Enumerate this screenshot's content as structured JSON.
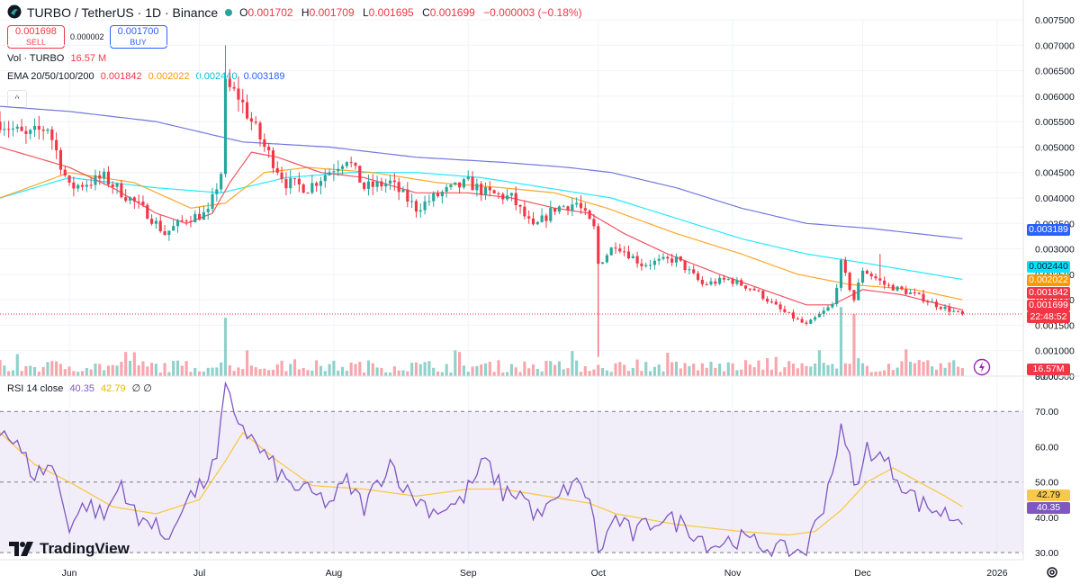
{
  "header": {
    "title": "TURBO / TetherUS · 1D · Binance",
    "ohlc": [
      {
        "k": "O",
        "v": "0.001702"
      },
      {
        "k": "H",
        "v": "0.001709"
      },
      {
        "k": "L",
        "v": "0.001695"
      },
      {
        "k": "C",
        "v": "0.001699"
      }
    ],
    "change": "−0.000003 (−0.18%)"
  },
  "trade": {
    "sell_price": "0.001698",
    "sell_label": "SELL",
    "spread": "0.000002",
    "buy_price": "0.001700",
    "buy_label": "BUY"
  },
  "legend": {
    "vol_label": "Vol · TURBO",
    "vol_value": "16.57 M",
    "ema_label": "EMA 20/50/100/200",
    "ema_values": [
      "0.001842",
      "0.002022",
      "0.002440",
      "0.003189"
    ],
    "collapse_glyph": "^"
  },
  "rsi_legend": {
    "label": "RSI 14 close",
    "rsi": "40.35",
    "ma": "42.79",
    "extra": "∅ ∅"
  },
  "price_labels": {
    "ema200": "0.003189",
    "ema100": "0.002440",
    "ema50": "0.002022",
    "ema20": "0.001842",
    "last": "0.001699",
    "countdown": "22:48:52",
    "vol": "16.57M",
    "rsi_ma": "42.79",
    "rsi": "40.35"
  },
  "brand": "TradingView",
  "colors": {
    "up": "#26a69a",
    "down": "#f23645",
    "ema20": "#f23645",
    "ema50": "#ff9800",
    "ema100": "#00e5ff",
    "ema200": "#5b5fd6",
    "rsi": "#7e57c2",
    "rsi_ma": "#f7c948"
  },
  "chart_data": [
    {
      "type": "candlestick",
      "title": "TURBO / TetherUS · 1D · Binance",
      "y_ticks": [
        "0.007500",
        "0.007000",
        "0.006500",
        "0.006000",
        "0.005500",
        "0.005000",
        "0.004500",
        "0.004000",
        "0.003500",
        "0.003000",
        "0.002500",
        "0.002000",
        "0.001500",
        "0.001000",
        "0.000500"
      ],
      "ylim": [
        0.0005,
        0.0075
      ],
      "x_ticks": [
        "Jun",
        "Jul",
        "Aug",
        "Sep",
        "Oct",
        "Nov",
        "Dec",
        "2026"
      ],
      "x_tick_days": [
        0,
        30,
        61,
        92,
        122,
        153,
        183,
        214
      ],
      "x_range_days": [
        -16,
        219
      ],
      "grid": true,
      "series_keypoints": {
        "close": [
          [
            -16,
            0.0055
          ],
          [
            -10,
            0.0052
          ],
          [
            -5,
            0.0054
          ],
          [
            0,
            0.0042
          ],
          [
            8,
            0.0044
          ],
          [
            18,
            0.0037
          ],
          [
            22,
            0.0033
          ],
          [
            27,
            0.0036
          ],
          [
            32,
            0.0037
          ],
          [
            35,
            0.0045
          ],
          [
            36,
            0.0062
          ],
          [
            39,
            0.006
          ],
          [
            45,
            0.005
          ],
          [
            50,
            0.0043
          ],
          [
            55,
            0.0042
          ],
          [
            61,
            0.0046
          ],
          [
            64,
            0.0048
          ],
          [
            68,
            0.0042
          ],
          [
            74,
            0.0043
          ],
          [
            80,
            0.0038
          ],
          [
            86,
            0.0041
          ],
          [
            92,
            0.0043
          ],
          [
            96,
            0.0041
          ],
          [
            102,
            0.004
          ],
          [
            107,
            0.0034
          ],
          [
            112,
            0.0038
          ],
          [
            117,
            0.0039
          ],
          [
            121,
            0.0034
          ],
          [
            122,
            0.0027
          ],
          [
            126,
            0.0031
          ],
          [
            132,
            0.0027
          ],
          [
            140,
            0.0028
          ],
          [
            146,
            0.0023
          ],
          [
            152,
            0.0024
          ],
          [
            158,
            0.0022
          ],
          [
            164,
            0.0018
          ],
          [
            170,
            0.0015
          ],
          [
            176,
            0.0019
          ],
          [
            178,
            0.0027
          ],
          [
            181,
            0.002
          ],
          [
            183,
            0.0026
          ],
          [
            188,
            0.0023
          ],
          [
            195,
            0.0021
          ],
          [
            200,
            0.0019
          ],
          [
            206,
            0.0017
          ]
        ],
        "ema20": [
          [
            -16,
            0.005
          ],
          [
            0,
            0.0046
          ],
          [
            10,
            0.0042
          ],
          [
            20,
            0.0037
          ],
          [
            27,
            0.0035
          ],
          [
            33,
            0.0037
          ],
          [
            37,
            0.0043
          ],
          [
            42,
            0.0049
          ],
          [
            48,
            0.0048
          ],
          [
            58,
            0.0045
          ],
          [
            68,
            0.0044
          ],
          [
            80,
            0.0041
          ],
          [
            92,
            0.0041
          ],
          [
            102,
            0.004
          ],
          [
            112,
            0.0038
          ],
          [
            120,
            0.0037
          ],
          [
            128,
            0.0033
          ],
          [
            138,
            0.0029
          ],
          [
            150,
            0.0025
          ],
          [
            160,
            0.0022
          ],
          [
            170,
            0.0019
          ],
          [
            176,
            0.0019
          ],
          [
            183,
            0.0022
          ],
          [
            192,
            0.0021
          ],
          [
            206,
            0.0018
          ]
        ],
        "ema50": [
          [
            -16,
            0.004
          ],
          [
            0,
            0.0045
          ],
          [
            15,
            0.0043
          ],
          [
            28,
            0.0038
          ],
          [
            36,
            0.0039
          ],
          [
            45,
            0.0045
          ],
          [
            55,
            0.0046
          ],
          [
            70,
            0.0045
          ],
          [
            85,
            0.0043
          ],
          [
            100,
            0.0042
          ],
          [
            112,
            0.0041
          ],
          [
            124,
            0.0038
          ],
          [
            140,
            0.0033
          ],
          [
            155,
            0.0029
          ],
          [
            168,
            0.0025
          ],
          [
            180,
            0.0023
          ],
          [
            195,
            0.0022
          ],
          [
            206,
            0.002
          ]
        ],
        "ema100": [
          [
            -16,
            0.004
          ],
          [
            0,
            0.0044
          ],
          [
            20,
            0.0042
          ],
          [
            35,
            0.0041
          ],
          [
            50,
            0.0044
          ],
          [
            65,
            0.0045
          ],
          [
            80,
            0.0045
          ],
          [
            95,
            0.0044
          ],
          [
            110,
            0.0042
          ],
          [
            125,
            0.004
          ],
          [
            140,
            0.0036
          ],
          [
            155,
            0.0032
          ],
          [
            170,
            0.0029
          ],
          [
            185,
            0.0027
          ],
          [
            206,
            0.0024
          ]
        ],
        "ema200": [
          [
            -16,
            0.0058
          ],
          [
            0,
            0.0057
          ],
          [
            20,
            0.0055
          ],
          [
            40,
            0.0051
          ],
          [
            60,
            0.005
          ],
          [
            80,
            0.0048
          ],
          [
            100,
            0.0047
          ],
          [
            115,
            0.0046
          ],
          [
            125,
            0.0045
          ],
          [
            140,
            0.0042
          ],
          [
            155,
            0.0038
          ],
          [
            170,
            0.0035
          ],
          [
            185,
            0.0034
          ],
          [
            206,
            0.0032
          ]
        ]
      },
      "notable_wicks": [
        {
          "day": 36,
          "high": 0.007
        },
        {
          "day": 122,
          "low": 0.00088
        },
        {
          "day": 187,
          "high": 0.0029
        }
      ],
      "volume_spikes": [
        {
          "day": 36,
          "value": "high"
        },
        {
          "day": 178,
          "value": "high"
        },
        {
          "day": 181,
          "value": "high"
        }
      ]
    },
    {
      "type": "line",
      "title": "RSI 14 close",
      "y_ticks": [
        "80.00",
        "70.00",
        "60.00",
        "50.00",
        "40.00",
        "30.00"
      ],
      "ylim": [
        28,
        80
      ],
      "bands": [
        30,
        70
      ],
      "midline": 50,
      "series": [
        {
          "name": "RSI",
          "keypoints": [
            [
              -16,
              66
            ],
            [
              -12,
              60
            ],
            [
              -8,
              52
            ],
            [
              -4,
              55
            ],
            [
              0,
              38
            ],
            [
              4,
              44
            ],
            [
              8,
              40
            ],
            [
              12,
              50
            ],
            [
              16,
              38
            ],
            [
              20,
              40
            ],
            [
              22,
              31
            ],
            [
              26,
              44
            ],
            [
              30,
              48
            ],
            [
              34,
              56
            ],
            [
              36,
              76
            ],
            [
              38,
              70
            ],
            [
              42,
              62
            ],
            [
              46,
              56
            ],
            [
              50,
              50
            ],
            [
              55,
              47
            ],
            [
              60,
              44
            ],
            [
              64,
              50
            ],
            [
              68,
              43
            ],
            [
              74,
              56
            ],
            [
              78,
              47
            ],
            [
              84,
              42
            ],
            [
              90,
              44
            ],
            [
              96,
              56
            ],
            [
              100,
              47
            ],
            [
              104,
              47
            ],
            [
              108,
              40
            ],
            [
              112,
              44
            ],
            [
              116,
              50
            ],
            [
              120,
              46
            ],
            [
              122,
              30
            ],
            [
              126,
              40
            ],
            [
              130,
              35
            ],
            [
              136,
              40
            ],
            [
              142,
              38
            ],
            [
              148,
              32
            ],
            [
              154,
              34
            ],
            [
              160,
              32
            ],
            [
              166,
              30
            ],
            [
              170,
              31
            ],
            [
              174,
              44
            ],
            [
              178,
              64
            ],
            [
              182,
              48
            ],
            [
              184,
              60
            ],
            [
              188,
              56
            ],
            [
              192,
              50
            ],
            [
              196,
              44
            ],
            [
              200,
              42
            ],
            [
              204,
              40
            ],
            [
              206,
              40
            ]
          ]
        },
        {
          "name": "RSI-based MA",
          "keypoints": [
            [
              -16,
              64
            ],
            [
              -8,
              55
            ],
            [
              0,
              50
            ],
            [
              10,
              43
            ],
            [
              20,
              41
            ],
            [
              30,
              45
            ],
            [
              36,
              56
            ],
            [
              40,
              64
            ],
            [
              48,
              56
            ],
            [
              56,
              49
            ],
            [
              68,
              48
            ],
            [
              80,
              46
            ],
            [
              92,
              48
            ],
            [
              100,
              48
            ],
            [
              110,
              46
            ],
            [
              120,
              44
            ],
            [
              126,
              41
            ],
            [
              140,
              38
            ],
            [
              155,
              36
            ],
            [
              166,
              35
            ],
            [
              172,
              36
            ],
            [
              178,
              42
            ],
            [
              184,
              50
            ],
            [
              190,
              54
            ],
            [
              196,
              50
            ],
            [
              202,
              46
            ],
            [
              206,
              43
            ]
          ]
        }
      ]
    }
  ]
}
